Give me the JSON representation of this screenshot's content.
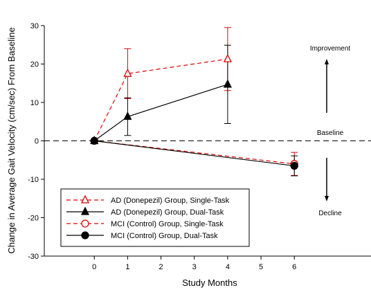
{
  "chart_data": {
    "type": "line",
    "xlabel": "Study Months",
    "ylabel": "Change in Average Gait Velocity (cm/sec) From Baseline",
    "xlim": [
      -1.5,
      8.3
    ],
    "ylim": [
      -30,
      30
    ],
    "x_ticks": [
      0,
      1,
      2,
      3,
      4,
      5,
      6
    ],
    "y_ticks": [
      -30,
      -20,
      -10,
      0,
      10,
      20,
      30
    ],
    "baseline": 0,
    "grid": false,
    "legend_position": "bottom-left",
    "annotations": {
      "improvement": "Improvement",
      "baseline": "Baseline",
      "decline": "Decline"
    },
    "series": [
      {
        "name": "AD (Donepezil) Group, Single-Task",
        "color": "#dd0000",
        "dashed": true,
        "marker": "triangle-open",
        "points": [
          {
            "x": 0,
            "y": 0,
            "err": 0
          },
          {
            "x": 1,
            "y": 17.5,
            "err": 6.5
          },
          {
            "x": 4,
            "y": 21.3,
            "err": 8.2
          }
        ]
      },
      {
        "name": "AD (Donepezil) Group, Dual-Task",
        "color": "#000000",
        "dashed": false,
        "marker": "triangle-filled",
        "points": [
          {
            "x": 0,
            "y": 0,
            "err": 0
          },
          {
            "x": 1,
            "y": 6.3,
            "err": 4.9
          },
          {
            "x": 4,
            "y": 14.7,
            "err": 10.2
          }
        ]
      },
      {
        "name": "MCI (Control) Group, Single-Task",
        "color": "#dd0000",
        "dashed": true,
        "marker": "circle-open",
        "points": [
          {
            "x": 0,
            "y": 0,
            "err": 0
          },
          {
            "x": 6,
            "y": -6.0,
            "err": 3.0
          }
        ]
      },
      {
        "name": "MCI (Control) Group, Dual-Task",
        "color": "#000000",
        "dashed": false,
        "marker": "circle-filled",
        "points": [
          {
            "x": 0,
            "y": 0,
            "err": 0
          },
          {
            "x": 6,
            "y": -6.5,
            "err": 2.6
          }
        ]
      }
    ]
  }
}
